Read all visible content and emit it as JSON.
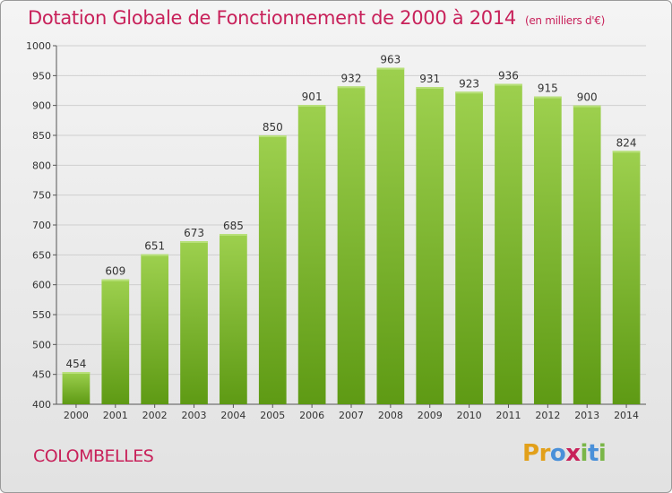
{
  "header": {
    "title": "Dotation Globale de Fonctionnement de 2000 à 2014",
    "subtitle": "(en milliers d'€)"
  },
  "footer": {
    "commune": "COLOMBELLES",
    "logo": {
      "letters": [
        "P",
        "r",
        "o",
        "x",
        "i",
        "t",
        "i"
      ],
      "colors": [
        "#e2a01a",
        "#e2a01a",
        "#4a90d9",
        "#c8215a",
        "#7ab648",
        "#4a90d9",
        "#7ab648"
      ]
    }
  },
  "colors": {
    "bar_light": "#9dd04e",
    "bar_dark": "#5e9a14",
    "title": "#c8215a",
    "grid": "#cfcfcf"
  },
  "chart_data": {
    "type": "bar",
    "title": "Dotation Globale de Fonctionnement de 2000 à 2014",
    "subtitle": "(en milliers d'€)",
    "xlabel": "",
    "ylabel": "",
    "ylim": [
      400,
      1000
    ],
    "yticks": [
      400,
      450,
      500,
      550,
      600,
      650,
      700,
      750,
      800,
      850,
      900,
      950,
      1000
    ],
    "grid": true,
    "categories": [
      "2000",
      "2001",
      "2002",
      "2003",
      "2004",
      "2005",
      "2006",
      "2007",
      "2008",
      "2009",
      "2010",
      "2011",
      "2012",
      "2013",
      "2014"
    ],
    "values": [
      454,
      609,
      651,
      673,
      685,
      850,
      901,
      932,
      963,
      931,
      923,
      936,
      915,
      900,
      824
    ]
  }
}
